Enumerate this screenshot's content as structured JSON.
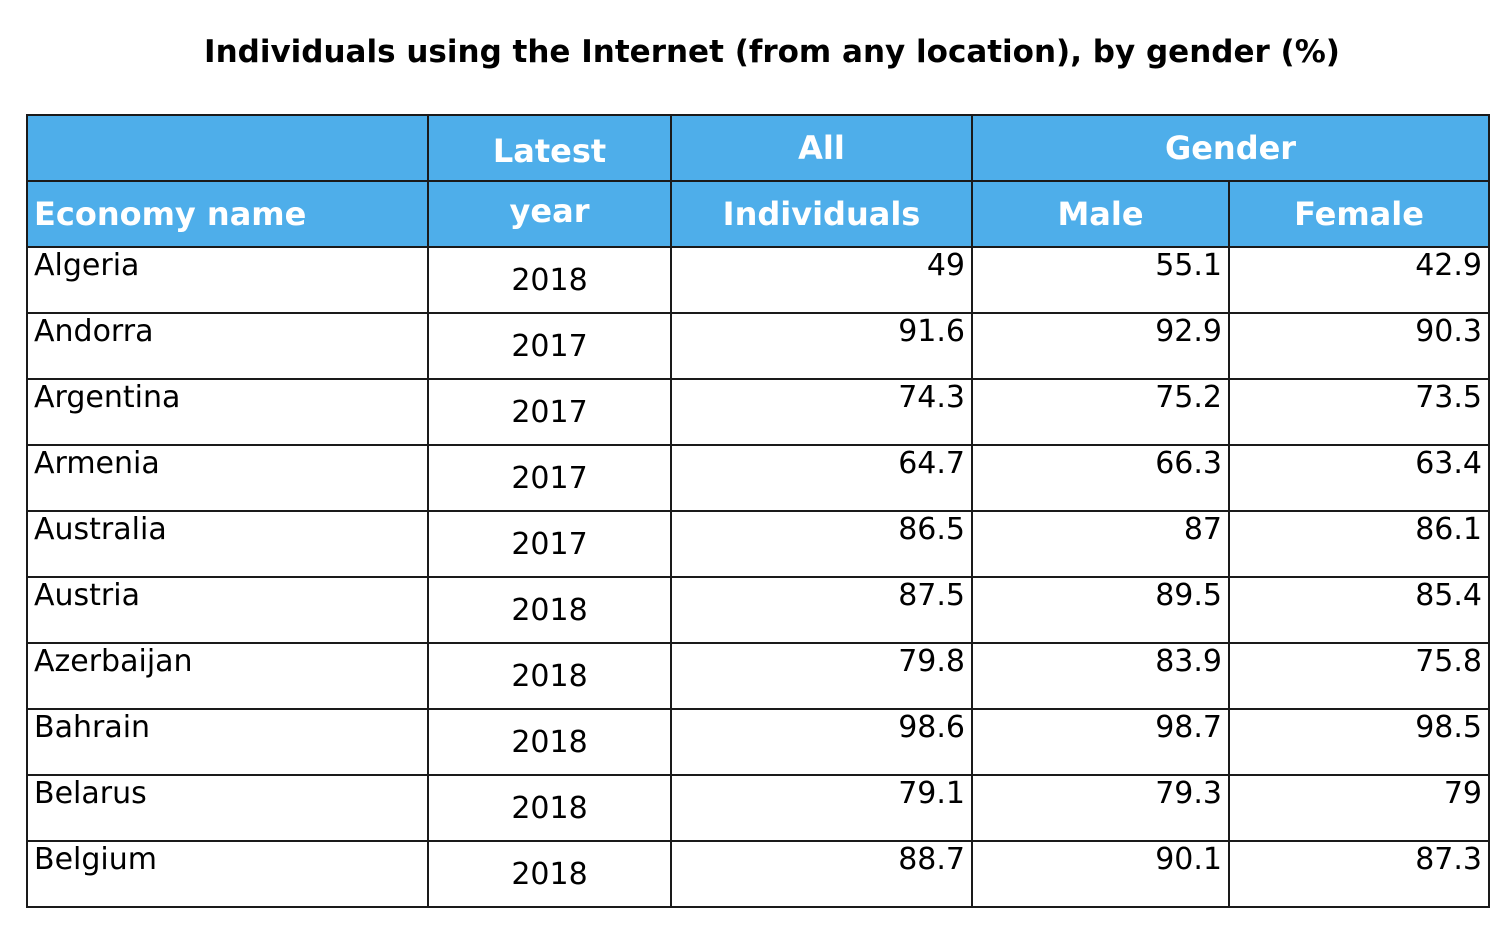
{
  "title": "Individuals using the Internet (from any location), by gender (%)",
  "header": {
    "latest": "Latest",
    "year": "year",
    "all": "All",
    "individuals": "Individuals",
    "gender": "Gender",
    "economy_name": "Economy name",
    "male": "Male",
    "female": "Female"
  },
  "rows": [
    {
      "name": "Algeria",
      "year": "2018",
      "all": "49",
      "male": "55.1",
      "female": "42.9"
    },
    {
      "name": "Andorra",
      "year": "2017",
      "all": "91.6",
      "male": "92.9",
      "female": "90.3"
    },
    {
      "name": "Argentina",
      "year": "2017",
      "all": "74.3",
      "male": "75.2",
      "female": "73.5"
    },
    {
      "name": "Armenia",
      "year": "2017",
      "all": "64.7",
      "male": "66.3",
      "female": "63.4"
    },
    {
      "name": "Australia",
      "year": "2017",
      "all": "86.5",
      "male": "87",
      "female": "86.1"
    },
    {
      "name": "Austria",
      "year": "2018",
      "all": "87.5",
      "male": "89.5",
      "female": "85.4"
    },
    {
      "name": "Azerbaijan",
      "year": "2018",
      "all": "79.8",
      "male": "83.9",
      "female": "75.8"
    },
    {
      "name": "Bahrain",
      "year": "2018",
      "all": "98.6",
      "male": "98.7",
      "female": "98.5"
    },
    {
      "name": "Belarus",
      "year": "2018",
      "all": "79.1",
      "male": "79.3",
      "female": "79"
    },
    {
      "name": "Belgium",
      "year": "2018",
      "all": "88.7",
      "male": "90.1",
      "female": "87.3"
    }
  ],
  "colors": {
    "header_bg": "#4eaeea",
    "header_text": "#ffffff",
    "border": "#1a1a1a"
  }
}
